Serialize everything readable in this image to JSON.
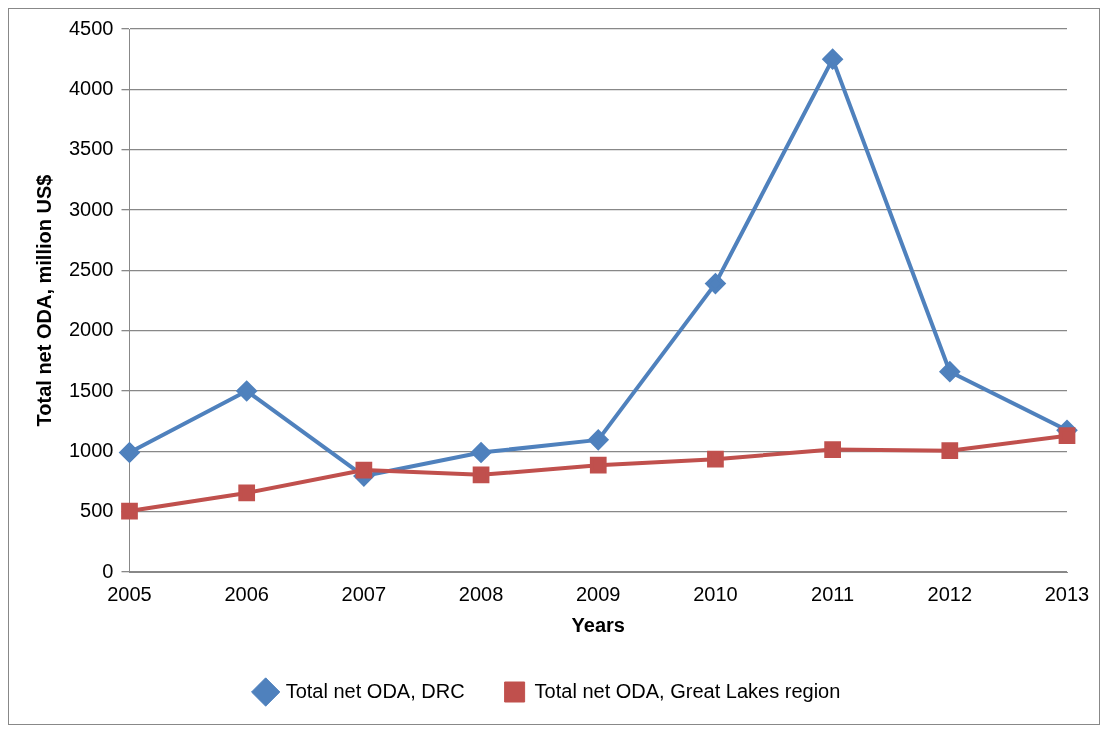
{
  "chart_data": {
    "type": "line",
    "xlabel": "Years",
    "ylabel": "Total net ODA, million US$",
    "categories": [
      "2005",
      "2006",
      "2007",
      "2008",
      "2009",
      "2010",
      "2011",
      "2012",
      "2013"
    ],
    "series": [
      {
        "name": "Total net ODA, DRC",
        "color": "#4f81bd",
        "marker": "diamond",
        "values": [
          990,
          1500,
          795,
          990,
          1095,
          2390,
          4250,
          1660,
          1175
        ]
      },
      {
        "name": "Total net ODA, Great Lakes region",
        "color": "#c0504d",
        "marker": "square",
        "values": [
          505,
          655,
          845,
          805,
          885,
          935,
          1015,
          1005,
          1130
        ]
      }
    ],
    "ylim": [
      0,
      4500
    ],
    "yticks": [
      0,
      500,
      1000,
      1500,
      2000,
      2500,
      3000,
      3500,
      4000,
      4500
    ],
    "grid": "y",
    "legend": "bottom",
    "line_style": "solid"
  }
}
